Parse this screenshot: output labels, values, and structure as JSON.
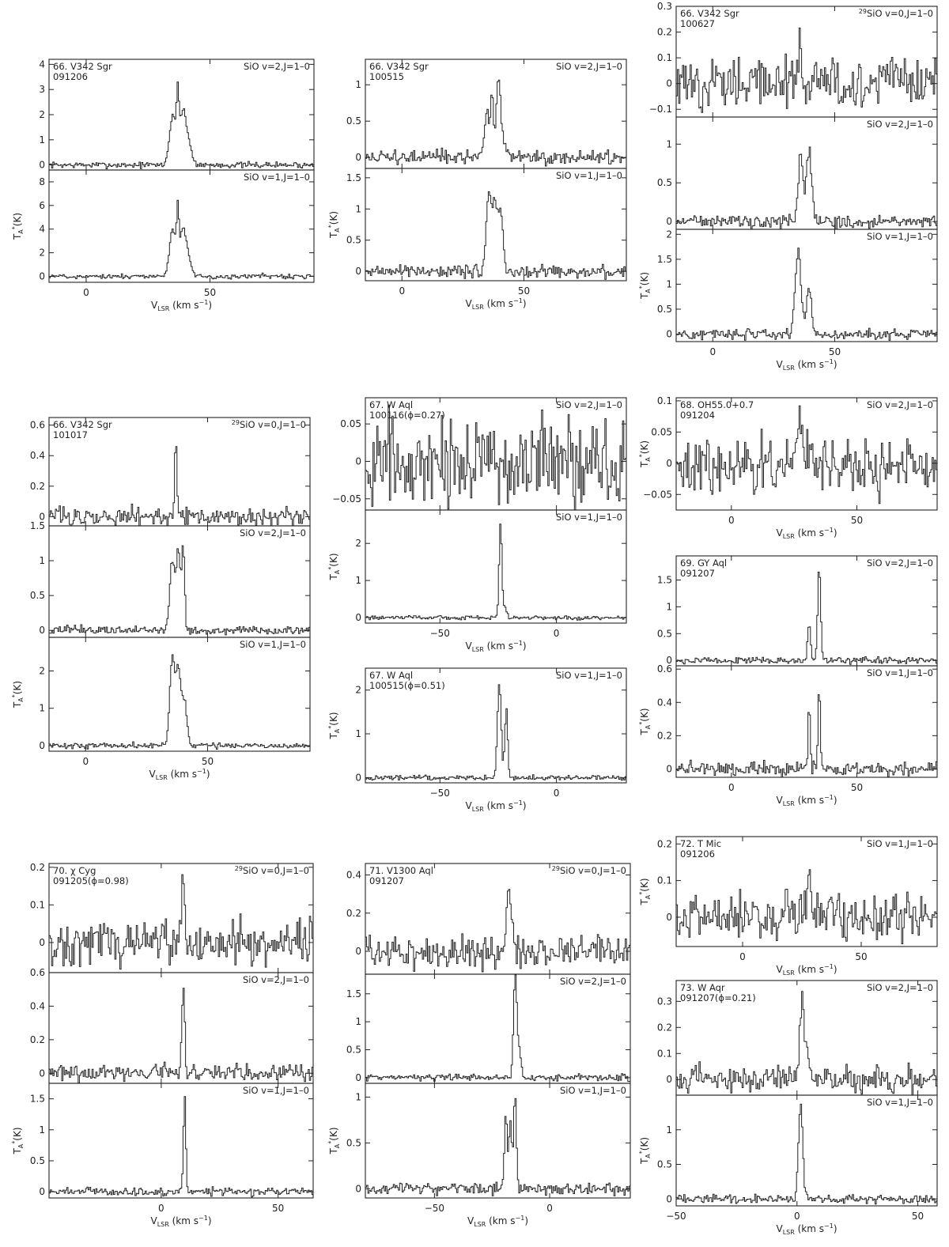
{
  "chart_data": [
    {
      "type": "line",
      "xlabel": "V_LSR (km s^-1)",
      "ylabel": "",
      "xlim": [
        -15,
        92
      ],
      "xticks": [
        0,
        50
      ],
      "panels": [
        {
          "source": "66. V342 Sgr",
          "date": "091206",
          "line": "SiO v=2,J=1-0",
          "ylim": [
            -0.2,
            4.2
          ],
          "yticks": [
            0,
            1,
            2,
            3,
            4
          ],
          "baseline_noise": 0.06,
          "peaks": [
            [
              35,
              2.0,
              1.3
            ],
            [
              37,
              2.2,
              0.5
            ],
            [
              39,
              1.8,
              1.2
            ],
            [
              41,
              0.9,
              1.5
            ]
          ]
        },
        {
          "source": "",
          "date": "",
          "line": "SiO v=1,J=1-0",
          "ylim": [
            -0.5,
            9.0
          ],
          "yticks": [
            0,
            2,
            4,
            6,
            8
          ],
          "baseline_noise": 0.1,
          "peaks": [
            [
              35,
              4.0,
              1.3
            ],
            [
              37,
              4.2,
              0.45
            ],
            [
              39,
              3.4,
              1.2
            ],
            [
              41,
              1.5,
              1.5
            ]
          ]
        }
      ]
    },
    {
      "type": "line",
      "xlabel": "V_LSR (km s^-1)",
      "ylabel": "",
      "xlim": [
        -15,
        92
      ],
      "xticks": [
        0,
        50
      ],
      "panels": [
        {
          "source": "66. V342 Sgr",
          "date": "100515",
          "line": "SiO v=2,J=1-0",
          "ylim": [
            -0.15,
            1.35
          ],
          "yticks": [
            0,
            0.5,
            1
          ],
          "baseline_noise": 0.05,
          "peaks": [
            [
              35,
              0.6,
              1.2
            ],
            [
              37,
              0.7,
              0.5
            ],
            [
              39.5,
              0.9,
              0.8
            ],
            [
              41,
              0.3,
              1.5
            ]
          ]
        },
        {
          "source": "",
          "date": "",
          "line": "SiO v=1,J=1-0",
          "ylim": [
            -0.15,
            1.65
          ],
          "yticks": [
            0,
            0.5,
            1,
            1.5
          ],
          "baseline_noise": 0.05,
          "peaks": [
            [
              35.5,
              1.2,
              1.0
            ],
            [
              38,
              1.1,
              1.0
            ],
            [
              40.5,
              0.9,
              1.0
            ]
          ]
        }
      ]
    },
    {
      "type": "line",
      "xlabel": "V_LSR (km s^-1)",
      "ylabel": "",
      "xlim": [
        -15,
        92
      ],
      "xticks": [
        0,
        50
      ],
      "panels": [
        {
          "source": "66. V342 Sgr",
          "date": "100627",
          "line": "29SiO v=0,J=1-0",
          "ylim": [
            -0.13,
            0.3
          ],
          "yticks": [
            -0.1,
            0,
            0.1,
            0.2,
            0.3
          ],
          "baseline_noise": 0.05,
          "peaks": [
            [
              36,
              0.22,
              0.5
            ]
          ]
        },
        {
          "source": "",
          "date": "",
          "line": "SiO v=2,J=1-0",
          "ylim": [
            -0.1,
            1.35
          ],
          "yticks": [
            0,
            0.5,
            1
          ],
          "baseline_noise": 0.04,
          "peaks": [
            [
              36,
              0.9,
              0.9
            ],
            [
              39.5,
              0.95,
              1.1
            ]
          ]
        },
        {
          "source": "",
          "date": "",
          "line": "SiO v=1,J=1-0",
          "ylim": [
            -0.15,
            2.1
          ],
          "yticks": [
            0,
            0.5,
            1,
            1.5,
            2
          ],
          "baseline_noise": 0.05,
          "peaks": [
            [
              35,
              1.7,
              1.2
            ],
            [
              39.5,
              0.9,
              1.0
            ]
          ]
        }
      ]
    },
    {
      "type": "line",
      "xlabel": "V_LSR (km s^-1)",
      "ylabel": "",
      "xlim": [
        -15,
        92
      ],
      "xticks": [
        0,
        50
      ],
      "panels": [
        {
          "source": "66. V342 Sgr",
          "date": "101017",
          "line": "29SiO v=0,J=1-0",
          "ylim": [
            -0.06,
            0.65
          ],
          "yticks": [
            0,
            0.2,
            0.4,
            0.6
          ],
          "baseline_noise": 0.03,
          "peaks": [
            [
              37,
              0.5,
              0.5
            ]
          ]
        },
        {
          "source": "",
          "date": "",
          "line": "SiO v=2,J=1-0",
          "ylim": [
            -0.1,
            1.5
          ],
          "yticks": [
            0,
            0.5,
            1,
            1.5
          ],
          "baseline_noise": 0.03,
          "peaks": [
            [
              35.5,
              1.0,
              1.0
            ],
            [
              38,
              1.1,
              0.8
            ],
            [
              40,
              1.2,
              0.6
            ]
          ]
        },
        {
          "source": "",
          "date": "",
          "line": "SiO v=1,J=1-0",
          "ylim": [
            -0.15,
            2.9
          ],
          "yticks": [
            0,
            1,
            2
          ],
          "baseline_noise": 0.04,
          "peaks": [
            [
              35.5,
              2.3,
              1.0
            ],
            [
              38,
              2.0,
              1.0
            ],
            [
              40.5,
              1.2,
              1.0
            ]
          ]
        }
      ]
    },
    {
      "type": "line",
      "xlabel": "V_LSR (km s^-1)",
      "ylabel": "",
      "xlim": [
        -82,
        30
      ],
      "xticks": [
        -50,
        0
      ],
      "panels": [
        {
          "source": "67. W Aql",
          "date": "100116(ϕ=0.27)",
          "line": "SiO v=2,J=1-0",
          "ylim": [
            -0.065,
            0.085
          ],
          "yticks": [
            -0.05,
            0,
            0.05
          ],
          "baseline_noise": 0.028,
          "peaks": []
        },
        {
          "source": "",
          "date": "",
          "line": "SiO v=1,J=1-0",
          "ylim": [
            -0.15,
            2.9
          ],
          "yticks": [
            0,
            1,
            2
          ],
          "baseline_noise": 0.03,
          "peaks": [
            [
              -24,
              2.6,
              0.6
            ],
            [
              -22,
              0.25,
              0.8
            ]
          ]
        }
      ]
    },
    {
      "type": "line",
      "xlabel": "V_LSR (km s^-1)",
      "ylabel": "",
      "xlim": [
        -82,
        30
      ],
      "xticks": [
        -50,
        0
      ],
      "panels": [
        {
          "source": "67. W Aql",
          "date": "100515(ϕ=0.51)",
          "line": "SiO v=1,J=1-0",
          "ylim": [
            -0.12,
            2.5
          ],
          "yticks": [
            0,
            1,
            2
          ],
          "baseline_noise": 0.03,
          "peaks": [
            [
              -24.5,
              2.2,
              0.8
            ],
            [
              -21.5,
              1.6,
              0.6
            ]
          ]
        }
      ]
    },
    {
      "type": "line",
      "xlabel": "V_LSR (km s^-1)",
      "ylabel": "",
      "xlim": [
        -22,
        82
      ],
      "xticks": [
        0,
        50
      ],
      "panels": [
        {
          "source": "68. OH55.0+0.7",
          "date": "091204",
          "line": "SiO v=2,J=1-0",
          "ylim": [
            -0.075,
            0.105
          ],
          "yticks": [
            -0.05,
            0,
            0.05,
            0.1
          ],
          "baseline_noise": 0.022,
          "peaks": [
            [
              27,
              0.045,
              2.0
            ]
          ]
        }
      ]
    },
    {
      "type": "line",
      "xlabel": "V_LSR (km s^-1)",
      "ylabel": "",
      "xlim": [
        -22,
        82
      ],
      "xticks": [
        0,
        50
      ],
      "panels": [
        {
          "source": "69. GY Aql",
          "date": "091207",
          "line": "SiO v=2,J=1-0",
          "ylim": [
            -0.1,
            1.95
          ],
          "yticks": [
            0,
            0.5,
            1,
            1.5
          ],
          "baseline_noise": 0.03,
          "peaks": [
            [
              31,
              0.7,
              0.6
            ],
            [
              35,
              1.7,
              0.6
            ]
          ]
        },
        {
          "source": "",
          "date": "",
          "line": "SiO v=1,J=1-0",
          "ylim": [
            -0.05,
            0.62
          ],
          "yticks": [
            0,
            0.2,
            0.4,
            0.6
          ],
          "baseline_noise": 0.02,
          "peaks": [
            [
              31,
              0.4,
              0.4
            ],
            [
              35,
              0.55,
              0.4
            ]
          ]
        }
      ]
    },
    {
      "type": "line",
      "xlabel": "V_LSR (km s^-1)",
      "ylabel": "",
      "xlim": [
        -48,
        65
      ],
      "xticks": [
        0,
        50
      ],
      "panels": [
        {
          "source": "70. χ Cyg",
          "date": "091205(ϕ=0.98)",
          "line": "29SiO v=0,J=1-0",
          "ylim": [
            -0.08,
            0.21
          ],
          "yticks": [
            0,
            0.1,
            0.2
          ],
          "baseline_noise": 0.03,
          "peaks": [
            [
              9.5,
              0.17,
              0.5
            ]
          ]
        },
        {
          "source": "",
          "date": "",
          "line": "SiO v=2,J=1-0",
          "ylim": [
            -0.06,
            0.6
          ],
          "yticks": [
            0,
            0.2,
            0.4,
            0.6
          ],
          "baseline_noise": 0.025,
          "peaks": [
            [
              9.5,
              0.52,
              0.6
            ]
          ]
        },
        {
          "source": "",
          "date": "",
          "line": "SiO v=1,J=1-0",
          "ylim": [
            -0.1,
            1.75
          ],
          "yticks": [
            0,
            0.5,
            1,
            1.5
          ],
          "baseline_noise": 0.03,
          "peaks": [
            [
              10,
              1.6,
              0.5
            ]
          ]
        }
      ]
    },
    {
      "type": "line",
      "xlabel": "V_LSR (km s^-1)",
      "ylabel": "",
      "xlim": [
        -80,
        35
      ],
      "xticks": [
        -50,
        0
      ],
      "panels": [
        {
          "source": "71. V1300 Aql",
          "date": "091207",
          "line": "29SiO v=0,J=1-0",
          "ylim": [
            -0.12,
            0.46
          ],
          "yticks": [
            0,
            0.2,
            0.4
          ],
          "baseline_noise": 0.04,
          "peaks": [
            [
              -18,
              0.35,
              0.8
            ],
            [
              -16,
              0.15,
              0.8
            ]
          ]
        },
        {
          "source": "",
          "date": "",
          "line": "SiO v=2,J=1-0",
          "ylim": [
            -0.1,
            1.85
          ],
          "yticks": [
            0,
            0.5,
            1,
            1.5
          ],
          "baseline_noise": 0.03,
          "peaks": [
            [
              -15,
              1.7,
              0.7
            ],
            [
              -13.5,
              0.5,
              1.0
            ]
          ]
        },
        {
          "source": "",
          "date": "",
          "line": "SiO v=1,J=1-0",
          "ylim": [
            -0.1,
            1.15
          ],
          "yticks": [
            0,
            0.5,
            1
          ],
          "baseline_noise": 0.03,
          "peaks": [
            [
              -19,
              0.8,
              0.6
            ],
            [
              -17,
              0.7,
              0.6
            ],
            [
              -15,
              1.05,
              0.6
            ]
          ]
        }
      ]
    },
    {
      "type": "line",
      "xlabel": "V_LSR (km s^-1)",
      "ylabel": "",
      "xlim": [
        -28,
        82
      ],
      "xticks": [
        0,
        50
      ],
      "panels": [
        {
          "source": "72. T Mic",
          "date": "091206",
          "line": "SiO v=1,J=1-0",
          "ylim": [
            -0.08,
            0.22
          ],
          "yticks": [
            0,
            0.1,
            0.2
          ],
          "baseline_noise": 0.03,
          "peaks": [
            [
              20,
              0.05,
              2.0
            ],
            [
              28,
              0.17,
              0.6
            ]
          ]
        }
      ]
    },
    {
      "type": "line",
      "xlabel": "V_LSR (km s^-1)",
      "ylabel": "",
      "xlim": [
        -50,
        58
      ],
      "xticks": [
        -50,
        0,
        50
      ],
      "panels": [
        {
          "source": "73. W Aqr",
          "date": "091207(ϕ=0.21)",
          "line": "SiO v=2,J=1-0",
          "ylim": [
            -0.06,
            0.38
          ],
          "yticks": [
            0,
            0.1,
            0.2,
            0.3
          ],
          "baseline_noise": 0.025,
          "peaks": [
            [
              2,
              0.3,
              0.8
            ],
            [
              4,
              0.1,
              1.0
            ]
          ]
        },
        {
          "source": "",
          "date": "",
          "line": "SiO v=1,J=1-0",
          "ylim": [
            -0.1,
            1.5
          ],
          "yticks": [
            0,
            0.5,
            1
          ],
          "baseline_noise": 0.03,
          "peaks": [
            [
              1.5,
              1.35,
              0.9
            ]
          ]
        }
      ]
    }
  ]
}
